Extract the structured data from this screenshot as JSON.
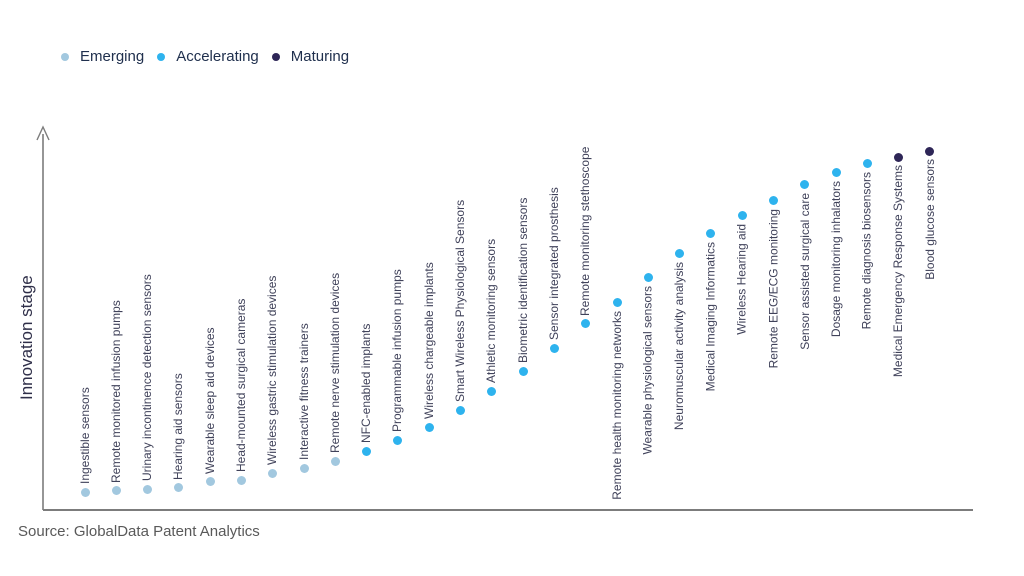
{
  "legend": {
    "items": [
      {
        "label": "Emerging",
        "color": "#a2c8df"
      },
      {
        "label": "Accelerating",
        "color": "#2eb3ee"
      },
      {
        "label": "Maturing",
        "color": "#2e2657"
      }
    ]
  },
  "y_axis_label": "Innovation stage",
  "source": "Source: GlobalData Patent Analytics",
  "chart_data": {
    "type": "scatter",
    "title": "",
    "xlabel": "",
    "ylabel": "Innovation stage",
    "ylim": [
      0,
      100
    ],
    "grid": false,
    "legend_position": "top-left",
    "stage_colors": {
      "emerging": "#a2c8df",
      "accelerating": "#2eb3ee",
      "maturing": "#2e2657"
    },
    "points": [
      {
        "label": "Ingestible sensors",
        "stage": "emerging",
        "innovation_index": 4.5
      },
      {
        "label": "Remote monitored infusion pumps",
        "stage": "emerging",
        "innovation_index": 4.8
      },
      {
        "label": "Urinary incontinence detection sensors",
        "stage": "emerging",
        "innovation_index": 5.3
      },
      {
        "label": "Hearing aid sensors",
        "stage": "emerging",
        "innovation_index": 5.6
      },
      {
        "label": "Wearable sleep aid devices",
        "stage": "emerging",
        "innovation_index": 7.2
      },
      {
        "label": "Head-mounted surgical cameras",
        "stage": "emerging",
        "innovation_index": 7.7
      },
      {
        "label": "Wireless gastric stimulation devices",
        "stage": "emerging",
        "innovation_index": 9.5
      },
      {
        "label": "Interactive fitness trainers",
        "stage": "emerging",
        "innovation_index": 10.9
      },
      {
        "label": "Remote nerve stimulation devices",
        "stage": "emerging",
        "innovation_index": 12.7
      },
      {
        "label": "NFC-enabled implants",
        "stage": "accelerating",
        "innovation_index": 15.4
      },
      {
        "label": "Programmable infusion pumps",
        "stage": "accelerating",
        "innovation_index": 18.3
      },
      {
        "label": "Wireless chargeable implants",
        "stage": "accelerating",
        "innovation_index": 21.8
      },
      {
        "label": "Smart Wireless Physiological Sensors",
        "stage": "accelerating",
        "innovation_index": 26.3
      },
      {
        "label": "Athletic monitoring sensors",
        "stage": "accelerating",
        "innovation_index": 31.3
      },
      {
        "label": "Biometric identification sensors",
        "stage": "accelerating",
        "innovation_index": 36.6
      },
      {
        "label": "Sensor integrated prosthesis",
        "stage": "accelerating",
        "innovation_index": 42.7
      },
      {
        "label": "Remote monitoring stethoscope",
        "stage": "accelerating",
        "innovation_index": 49.3
      },
      {
        "label": "Remote health monitoring networks",
        "stage": "accelerating",
        "innovation_index": 54.9
      },
      {
        "label": "Wearable physiological sensors",
        "stage": "accelerating",
        "innovation_index": 61.5
      },
      {
        "label": "Neuromuscular activity analysis",
        "stage": "accelerating",
        "innovation_index": 67.9
      },
      {
        "label": "Medical Imaging Informatics",
        "stage": "accelerating",
        "innovation_index": 73.2
      },
      {
        "label": "Wireless Hearing aid",
        "stage": "accelerating",
        "innovation_index": 78.0
      },
      {
        "label": "Remote EEG/ECG monitoring",
        "stage": "accelerating",
        "innovation_index": 82.0
      },
      {
        "label": "Sensor assisted surgical care",
        "stage": "accelerating",
        "innovation_index": 86.2
      },
      {
        "label": "Dosage monitoring inhalators",
        "stage": "accelerating",
        "innovation_index": 89.4
      },
      {
        "label": "Remote diagnosis biosensors",
        "stage": "accelerating",
        "innovation_index": 91.8
      },
      {
        "label": "Medical Emergency Response Systems",
        "stage": "maturing",
        "innovation_index": 93.6
      },
      {
        "label": "Blood glucose sensors",
        "stage": "maturing",
        "innovation_index": 95.2
      }
    ]
  }
}
